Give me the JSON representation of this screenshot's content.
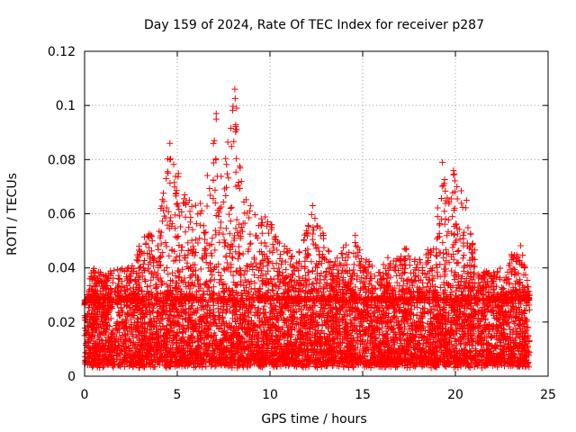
{
  "chart_data": {
    "type": "scatter",
    "title": "Day 159 of 2024, Rate Of TEC Index for receiver p287",
    "xlabel": "GPS time / hours",
    "ylabel": "ROTI / TECUs",
    "xlim": [
      0,
      25
    ],
    "ylim": [
      0,
      0.12
    ],
    "xticks": [
      0,
      5,
      10,
      15,
      20,
      25
    ],
    "xtick_labels": [
      "0",
      "5",
      "10",
      "15",
      "20",
      "25"
    ],
    "yticks": [
      0,
      0.02,
      0.04,
      0.06,
      0.08,
      0.1,
      0.12
    ],
    "ytick_labels": [
      "0",
      "0.02",
      "0.04",
      "0.06",
      "0.08",
      "0.1",
      "0.12"
    ],
    "grid": true,
    "marker": "+",
    "series_color": "#ff0000",
    "data_x_range": [
      0,
      24
    ],
    "baseline_band": [
      0.004,
      0.028
    ],
    "envelope": [
      {
        "x": 0.0,
        "ymax": 0.025
      },
      {
        "x": 0.4,
        "ymax": 0.041
      },
      {
        "x": 1.0,
        "ymax": 0.038
      },
      {
        "x": 1.7,
        "ymax": 0.04
      },
      {
        "x": 2.3,
        "ymax": 0.04
      },
      {
        "x": 3.3,
        "ymax": 0.053
      },
      {
        "x": 3.8,
        "ymax": 0.053
      },
      {
        "x": 4.6,
        "ymax": 0.086
      },
      {
        "x": 5.4,
        "ymax": 0.067
      },
      {
        "x": 6.1,
        "ymax": 0.063
      },
      {
        "x": 6.8,
        "ymax": 0.08
      },
      {
        "x": 7.1,
        "ymax": 0.097
      },
      {
        "x": 7.5,
        "ymax": 0.075
      },
      {
        "x": 8.1,
        "ymax": 0.106
      },
      {
        "x": 8.6,
        "ymax": 0.071
      },
      {
        "x": 9.1,
        "ymax": 0.06
      },
      {
        "x": 9.9,
        "ymax": 0.06
      },
      {
        "x": 10.6,
        "ymax": 0.05
      },
      {
        "x": 11.3,
        "ymax": 0.045
      },
      {
        "x": 12.3,
        "ymax": 0.063
      },
      {
        "x": 13.3,
        "ymax": 0.045
      },
      {
        "x": 14.6,
        "ymax": 0.052
      },
      {
        "x": 15.6,
        "ymax": 0.04
      },
      {
        "x": 16.6,
        "ymax": 0.045
      },
      {
        "x": 17.3,
        "ymax": 0.048
      },
      {
        "x": 18.3,
        "ymax": 0.042
      },
      {
        "x": 19.0,
        "ymax": 0.06
      },
      {
        "x": 19.3,
        "ymax": 0.079
      },
      {
        "x": 19.9,
        "ymax": 0.076
      },
      {
        "x": 20.6,
        "ymax": 0.065
      },
      {
        "x": 21.3,
        "ymax": 0.04
      },
      {
        "x": 22.0,
        "ymax": 0.038
      },
      {
        "x": 22.6,
        "ymax": 0.042
      },
      {
        "x": 23.0,
        "ymax": 0.045
      },
      {
        "x": 23.6,
        "ymax": 0.05
      },
      {
        "x": 24.0,
        "ymax": 0.03
      }
    ],
    "notable_points": [
      {
        "x": 8.1,
        "y": 0.106
      },
      {
        "x": 8.2,
        "y": 0.099
      },
      {
        "x": 8.2,
        "y": 0.091
      },
      {
        "x": 7.1,
        "y": 0.097
      },
      {
        "x": 7.1,
        "y": 0.095
      },
      {
        "x": 7.0,
        "y": 0.087
      },
      {
        "x": 4.6,
        "y": 0.086
      },
      {
        "x": 4.6,
        "y": 0.08
      },
      {
        "x": 4.5,
        "y": 0.075
      },
      {
        "x": 19.3,
        "y": 0.079
      },
      {
        "x": 19.9,
        "y": 0.076
      },
      {
        "x": 20.6,
        "y": 0.065
      },
      {
        "x": 5.4,
        "y": 0.067
      },
      {
        "x": 12.3,
        "y": 0.063
      },
      {
        "x": 14.6,
        "y": 0.052
      }
    ]
  }
}
